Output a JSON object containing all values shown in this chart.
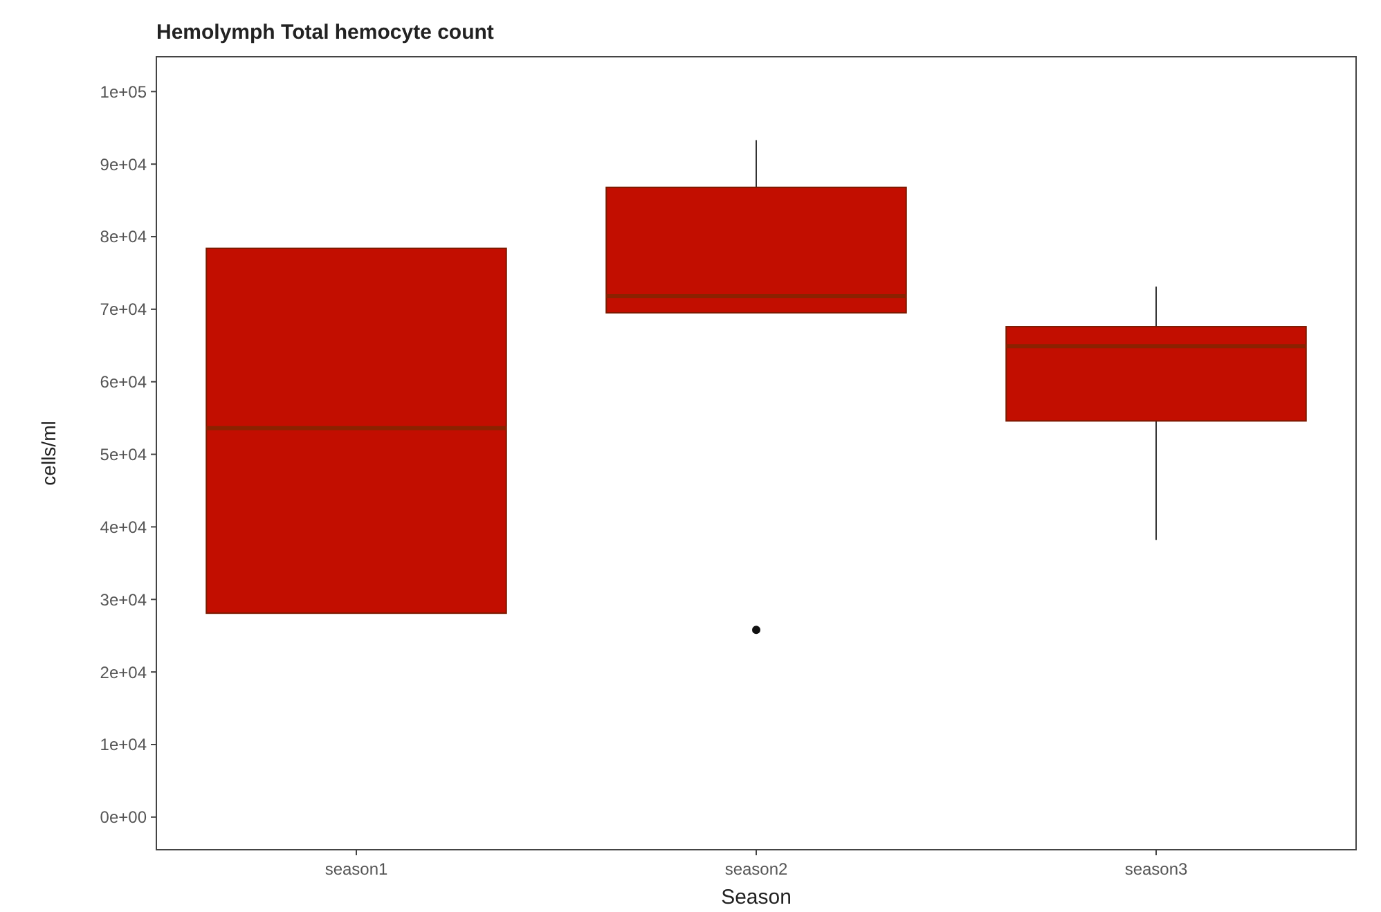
{
  "chart_data": {
    "type": "box",
    "title": "Hemolymph Total hemocyte count",
    "xlabel": "Season",
    "ylabel": "cells/ml",
    "categories": [
      "season1",
      "season2",
      "season3"
    ],
    "color": "#c20e00",
    "boxes": [
      {
        "low": 28100,
        "q1": 28100,
        "median": 53600,
        "q3": 78400,
        "high": 78400
      },
      {
        "low": 69500,
        "q1": 69500,
        "median": 71800,
        "q3": 86800,
        "high": 93300,
        "outliers": [
          25800
        ]
      },
      {
        "low": 38200,
        "q1": 54600,
        "median": 64900,
        "q3": 67600,
        "high": 73100
      }
    ],
    "ylim": [
      -4500,
      104800
    ],
    "yticks": [
      {
        "value": 0,
        "label": "0e+00"
      },
      {
        "value": 10000,
        "label": "1e+04"
      },
      {
        "value": 20000,
        "label": "2e+04"
      },
      {
        "value": 30000,
        "label": "3e+04"
      },
      {
        "value": 40000,
        "label": "4e+04"
      },
      {
        "value": 50000,
        "label": "5e+04"
      },
      {
        "value": 60000,
        "label": "6e+04"
      },
      {
        "value": 70000,
        "label": "7e+04"
      },
      {
        "value": 80000,
        "label": "8e+04"
      },
      {
        "value": 90000,
        "label": "9e+04"
      },
      {
        "value": 100000,
        "label": "1e+05"
      }
    ],
    "grid": false
  }
}
